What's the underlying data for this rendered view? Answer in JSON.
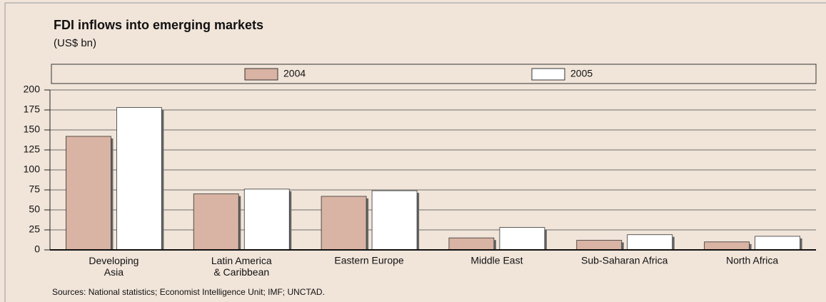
{
  "chart_data": {
    "type": "bar",
    "title": "FDI inflows into emerging markets",
    "subtitle": "(US$ bn)",
    "source": "Sources: National statistics; Economist Intelligence Unit; IMF; UNCTAD.",
    "categories": [
      "Developing\nAsia",
      "Latin America\n& Caribbean",
      "Eastern Europe",
      "Middle East",
      "Sub-Saharan Africa",
      "North Africa"
    ],
    "series": [
      {
        "name": "2004",
        "color": "#d9b3a3",
        "values": [
          142,
          70,
          67,
          15,
          12,
          10
        ]
      },
      {
        "name": "2005",
        "color": "#ffffff",
        "values": [
          178,
          76,
          74,
          28,
          19,
          17
        ]
      }
    ],
    "ylim": [
      0,
      200
    ],
    "yticks": [
      0,
      25,
      50,
      75,
      100,
      125,
      150,
      175,
      200
    ],
    "grid": true
  }
}
